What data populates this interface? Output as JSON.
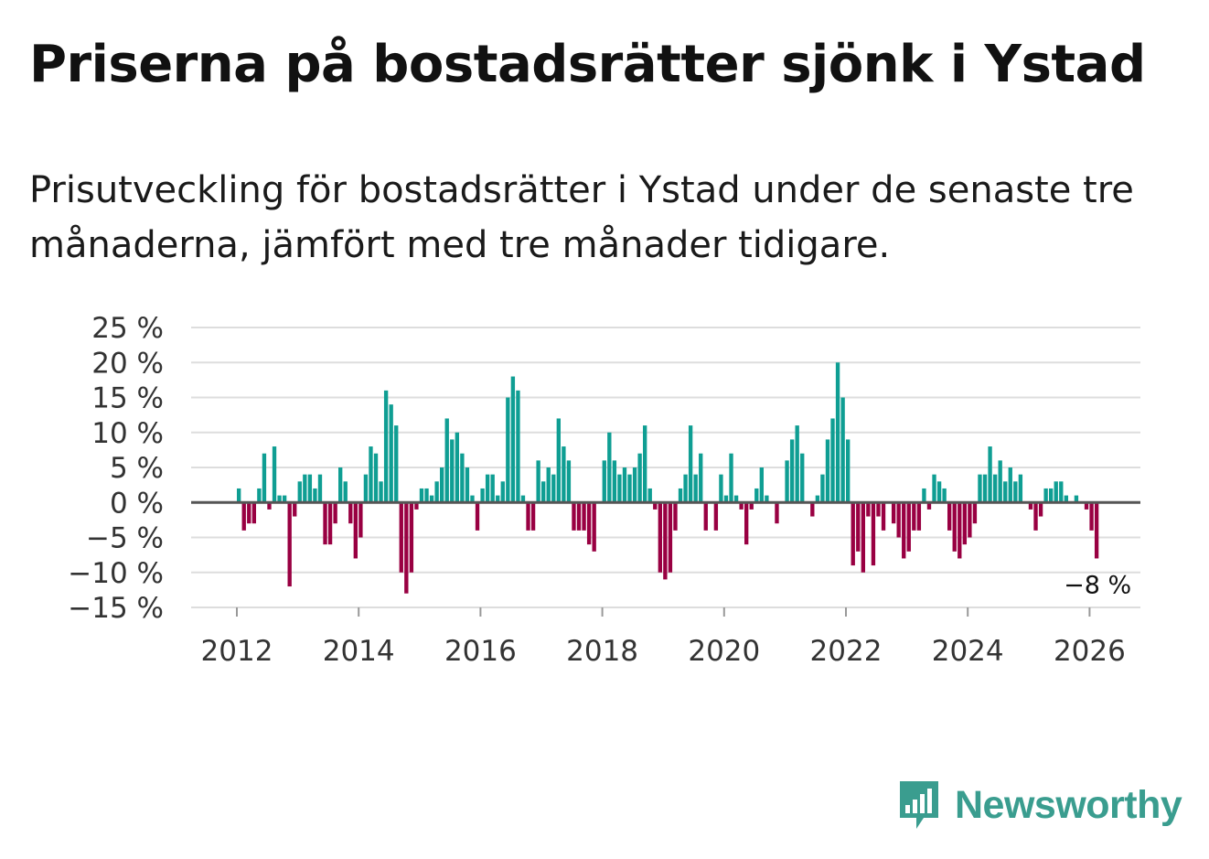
{
  "header": {
    "title": "Priserna på bostadsrätter sjönk i Ystad",
    "subtitle": "Prisutveckling för bostadsrätter i Ystad under de senaste tre månaderna, jämfört med tre månader tidigare."
  },
  "logo": {
    "text": "Newsworthy",
    "icon": "bar-chart-speech-bubble-icon"
  },
  "colors": {
    "positive": "#0f9e93",
    "negative": "#990042",
    "axis": "#555555",
    "grid": "#dddddd",
    "brand": "#3a9d8f"
  },
  "chart_data": {
    "type": "bar",
    "ylim": [
      -15,
      25
    ],
    "yticks": [
      25,
      20,
      15,
      10,
      5,
      0,
      -5,
      -10,
      -15
    ],
    "ytick_labels": [
      "25 %",
      "20 %",
      "15 %",
      "10 %",
      "5 %",
      "0 %",
      "−5 %",
      "−10 %",
      "−15 %"
    ],
    "xticks": [
      "2012",
      "2014",
      "2016",
      "2018",
      "2020",
      "2022",
      "2024",
      "2026"
    ],
    "x_start": "2012-01",
    "x_end": "2026-02",
    "grid": true,
    "last_value_label": "−8 %",
    "values": [
      2,
      -4,
      -3,
      -3,
      2,
      7,
      -1,
      8,
      1,
      1,
      -12,
      -2,
      3,
      4,
      4,
      2,
      4,
      -6,
      -6,
      -3,
      5,
      3,
      -3,
      -8,
      -5,
      4,
      8,
      7,
      3,
      16,
      14,
      11,
      -10,
      -13,
      -10,
      -1,
      2,
      2,
      1,
      3,
      5,
      12,
      9,
      10,
      7,
      5,
      1,
      -4,
      2,
      4,
      4,
      1,
      3,
      15,
      18,
      16,
      1,
      -4,
      -4,
      6,
      3,
      5,
      4,
      12,
      8,
      6,
      -4,
      -4,
      -4,
      -6,
      -7,
      0,
      6,
      10,
      6,
      4,
      5,
      4,
      5,
      7,
      11,
      2,
      -1,
      -10,
      -11,
      -10,
      -4,
      2,
      4,
      11,
      4,
      7,
      -4,
      0,
      -4,
      4,
      1,
      7,
      1,
      -1,
      -6,
      -1,
      2,
      5,
      1,
      0,
      -3,
      0,
      6,
      9,
      11,
      7,
      0,
      -2,
      1,
      4,
      9,
      12,
      20,
      15,
      9,
      -9,
      -7,
      -10,
      -2,
      -9,
      -2,
      -4,
      0,
      -3,
      -5,
      -8,
      -7,
      -4,
      -4,
      2,
      -1,
      4,
      3,
      2,
      -4,
      -7,
      -8,
      -6,
      -5,
      -3,
      4,
      4,
      8,
      4,
      6,
      3,
      5,
      3,
      4,
      0,
      -1,
      -4,
      -2,
      2,
      2,
      3,
      3,
      1,
      0,
      1,
      0,
      -1,
      -4,
      -8
    ]
  }
}
